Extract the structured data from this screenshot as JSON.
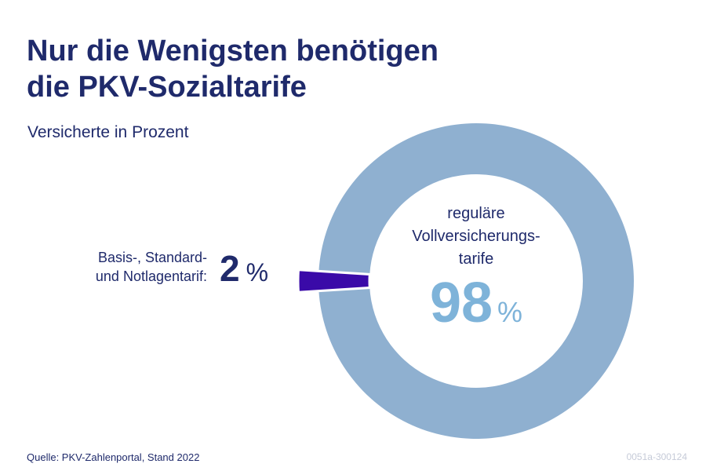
{
  "title_lines": [
    "Nur die Wenigsten benötigen",
    "die PKV-Sozialtarife"
  ],
  "subtitle": "Versicherte in Prozent",
  "source": "Quelle: PKV-Zahlenportal, Stand 2022",
  "code": "0051a-300124",
  "colors": {
    "text": "#1f2a6b",
    "regular_slice": "#8fb0d0",
    "social_slice": "#3a0aa8",
    "big_value": "#7eb3d9"
  },
  "chart_data": {
    "type": "pie",
    "title": "Nur die Wenigsten benötigen die PKV-Sozialtarife",
    "subtitle": "Versicherte in Prozent",
    "unit": "%",
    "series": [
      {
        "name": "reguläre Vollversicherungs-tarife",
        "label_lines": [
          "reguläre",
          "Vollversicherungs-",
          "tarife"
        ],
        "value": 98,
        "value_text": "98",
        "unit_text": "%"
      },
      {
        "name": "Basis-, Standard- und Notlagentarif",
        "label_lines": [
          "Basis-, Standard-",
          "und Notlagentarif:"
        ],
        "value": 2,
        "value_text": "2",
        "unit_text": "%"
      }
    ]
  }
}
